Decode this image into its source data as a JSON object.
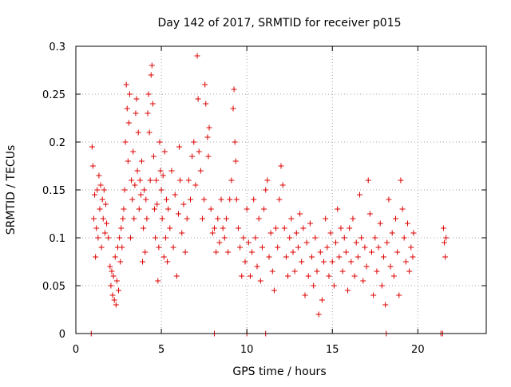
{
  "chart_data": {
    "type": "scatter",
    "title": "Day 142 of 2017, SRMTID for receiver p015",
    "xlabel": "GPS time / hours",
    "ylabel": "SRMTID / TECUs",
    "xlim": [
      0,
      24
    ],
    "ylim": [
      0,
      0.3
    ],
    "x_ticks": [
      0,
      5,
      10,
      15,
      20
    ],
    "y_ticks": [
      0,
      0.05,
      0.1,
      0.15,
      0.2,
      0.25,
      0.3
    ],
    "y_tick_labels": [
      "0",
      "0.05",
      "0.1",
      "0.15",
      "0.2",
      "0.25",
      "0.3"
    ],
    "grid": true,
    "marker": "+",
    "series": [
      {
        "name": "SRMTID",
        "color": "#dd0000",
        "points": [
          [
            0.95,
            0.195
          ],
          [
            1.0,
            0.175
          ],
          [
            1.05,
            0.12
          ],
          [
            1.1,
            0.145
          ],
          [
            1.15,
            0.08
          ],
          [
            1.2,
            0.11
          ],
          [
            1.25,
            0.15
          ],
          [
            1.3,
            0.1
          ],
          [
            1.35,
            0.165
          ],
          [
            1.4,
            0.13
          ],
          [
            1.45,
            0.155
          ],
          [
            1.5,
            0.09
          ],
          [
            1.55,
            0.14
          ],
          [
            1.6,
            0.12
          ],
          [
            1.65,
            0.15
          ],
          [
            1.7,
            0.105
          ],
          [
            1.75,
            0.135
          ],
          [
            1.8,
            0.115
          ],
          [
            1.9,
            0.1
          ],
          [
            2.0,
            0.07
          ],
          [
            2.05,
            0.05
          ],
          [
            2.1,
            0.065
          ],
          [
            2.15,
            0.04
          ],
          [
            2.2,
            0.06
          ],
          [
            2.25,
            0.035
          ],
          [
            2.3,
            0.08
          ],
          [
            2.35,
            0.03
          ],
          [
            2.4,
            0.055
          ],
          [
            2.45,
            0.09
          ],
          [
            2.5,
            0.045
          ],
          [
            2.55,
            0.1
          ],
          [
            2.6,
            0.075
          ],
          [
            2.65,
            0.11
          ],
          [
            2.7,
            0.09
          ],
          [
            2.75,
            0.12
          ],
          [
            2.8,
            0.13
          ],
          [
            2.85,
            0.15
          ],
          [
            2.9,
            0.2
          ],
          [
            2.95,
            0.26
          ],
          [
            3.0,
            0.235
          ],
          [
            3.05,
            0.18
          ],
          [
            3.1,
            0.22
          ],
          [
            3.15,
            0.25
          ],
          [
            3.2,
            0.1
          ],
          [
            3.25,
            0.16
          ],
          [
            3.3,
            0.14
          ],
          [
            3.35,
            0.19
          ],
          [
            3.4,
            0.12
          ],
          [
            3.45,
            0.155
          ],
          [
            3.5,
            0.23
          ],
          [
            3.55,
            0.245
          ],
          [
            3.6,
            0.17
          ],
          [
            3.65,
            0.21
          ],
          [
            3.7,
            0.13
          ],
          [
            3.75,
            0.16
          ],
          [
            3.8,
            0.145
          ],
          [
            3.85,
            0.18
          ],
          [
            3.9,
            0.075
          ],
          [
            3.95,
            0.11
          ],
          [
            4.0,
            0.15
          ],
          [
            4.05,
            0.085
          ],
          [
            4.1,
            0.14
          ],
          [
            4.15,
            0.12
          ],
          [
            4.2,
            0.23
          ],
          [
            4.25,
            0.25
          ],
          [
            4.3,
            0.21
          ],
          [
            4.35,
            0.16
          ],
          [
            4.4,
            0.27
          ],
          [
            4.45,
            0.28
          ],
          [
            4.5,
            0.24
          ],
          [
            4.55,
            0.185
          ],
          [
            4.6,
            0.13
          ],
          [
            4.65,
            0.1
          ],
          [
            4.7,
            0.16
          ],
          [
            4.75,
            0.135
          ],
          [
            4.8,
            0.055
          ],
          [
            4.85,
            0.09
          ],
          [
            4.9,
            0.2
          ],
          [
            4.95,
            0.17
          ],
          [
            5.0,
            0.15
          ],
          [
            5.05,
            0.12
          ],
          [
            5.1,
            0.165
          ],
          [
            5.15,
            0.08
          ],
          [
            5.2,
            0.19
          ],
          [
            5.25,
            0.1
          ],
          [
            5.3,
            0.14
          ],
          [
            5.35,
            0.075
          ],
          [
            5.4,
            0.13
          ],
          [
            5.5,
            0.11
          ],
          [
            5.6,
            0.17
          ],
          [
            5.7,
            0.09
          ],
          [
            5.8,
            0.145
          ],
          [
            5.9,
            0.06
          ],
          [
            6.0,
            0.125
          ],
          [
            6.05,
            0.195
          ],
          [
            6.1,
            0.16
          ],
          [
            6.2,
            0.105
          ],
          [
            6.3,
            0.135
          ],
          [
            6.4,
            0.085
          ],
          [
            6.5,
            0.12
          ],
          [
            6.6,
            0.16
          ],
          [
            6.7,
            0.14
          ],
          [
            6.8,
            0.185
          ],
          [
            6.9,
            0.2
          ],
          [
            7.0,
            0.155
          ],
          [
            7.1,
            0.29
          ],
          [
            7.15,
            0.245
          ],
          [
            7.2,
            0.19
          ],
          [
            7.3,
            0.17
          ],
          [
            7.4,
            0.12
          ],
          [
            7.5,
            0.14
          ],
          [
            7.55,
            0.26
          ],
          [
            7.6,
            0.24
          ],
          [
            7.7,
            0.205
          ],
          [
            7.75,
            0.185
          ],
          [
            7.8,
            0.215
          ],
          [
            7.9,
            0.13
          ],
          [
            8.0,
            0.105
          ],
          [
            8.1,
            0.11
          ],
          [
            8.2,
            0.085
          ],
          [
            8.3,
            0.12
          ],
          [
            8.4,
            0.095
          ],
          [
            8.5,
            0.14
          ],
          [
            8.6,
            0.11
          ],
          [
            8.7,
            0.1
          ],
          [
            8.8,
            0.12
          ],
          [
            8.9,
            0.085
          ],
          [
            9.0,
            0.14
          ],
          [
            9.1,
            0.16
          ],
          [
            9.2,
            0.235
          ],
          [
            9.25,
            0.255
          ],
          [
            9.3,
            0.2
          ],
          [
            9.35,
            0.18
          ],
          [
            9.4,
            0.14
          ],
          [
            9.5,
            0.11
          ],
          [
            9.6,
            0.09
          ],
          [
            9.7,
            0.06
          ],
          [
            9.8,
            0.1
          ],
          [
            9.9,
            0.075
          ],
          [
            10.0,
            0.13
          ],
          [
            10.1,
            0.095
          ],
          [
            10.2,
            0.06
          ],
          [
            10.3,
            0.085
          ],
          [
            10.4,
            0.14
          ],
          [
            10.5,
            0.1
          ],
          [
            10.6,
            0.07
          ],
          [
            10.7,
            0.12
          ],
          [
            10.8,
            0.055
          ],
          [
            10.9,
            0.09
          ],
          [
            11.0,
            0.13
          ],
          [
            11.1,
            0.15
          ],
          [
            11.2,
            0.16
          ],
          [
            11.3,
            0.08
          ],
          [
            11.4,
            0.105
          ],
          [
            11.5,
            0.065
          ],
          [
            11.6,
            0.045
          ],
          [
            11.7,
            0.11
          ],
          [
            11.8,
            0.09
          ],
          [
            11.9,
            0.14
          ],
          [
            12.0,
            0.175
          ],
          [
            12.1,
            0.155
          ],
          [
            12.2,
            0.11
          ],
          [
            12.3,
            0.08
          ],
          [
            12.4,
            0.06
          ],
          [
            12.5,
            0.1
          ],
          [
            12.6,
            0.12
          ],
          [
            12.7,
            0.085
          ],
          [
            12.8,
            0.065
          ],
          [
            12.9,
            0.105
          ],
          [
            13.0,
            0.09
          ],
          [
            13.1,
            0.125
          ],
          [
            13.2,
            0.075
          ],
          [
            13.3,
            0.11
          ],
          [
            13.4,
            0.04
          ],
          [
            13.5,
            0.095
          ],
          [
            13.6,
            0.06
          ],
          [
            13.7,
            0.115
          ],
          [
            13.8,
            0.08
          ],
          [
            13.9,
            0.05
          ],
          [
            14.0,
            0.1
          ],
          [
            14.1,
            0.065
          ],
          [
            14.2,
            0.02
          ],
          [
            14.3,
            0.085
          ],
          [
            14.4,
            0.035
          ],
          [
            14.5,
            0.075
          ],
          [
            14.6,
            0.12
          ],
          [
            14.7,
            0.09
          ],
          [
            14.8,
            0.06
          ],
          [
            14.9,
            0.105
          ],
          [
            15.0,
            0.075
          ],
          [
            15.1,
            0.05
          ],
          [
            15.2,
            0.095
          ],
          [
            15.3,
            0.13
          ],
          [
            15.4,
            0.08
          ],
          [
            15.5,
            0.11
          ],
          [
            15.6,
            0.065
          ],
          [
            15.7,
            0.1
          ],
          [
            15.8,
            0.085
          ],
          [
            15.9,
            0.045
          ],
          [
            16.0,
            0.11
          ],
          [
            16.1,
            0.075
          ],
          [
            16.2,
            0.12
          ],
          [
            16.3,
            0.06
          ],
          [
            16.4,
            0.095
          ],
          [
            16.5,
            0.08
          ],
          [
            16.6,
            0.145
          ],
          [
            16.7,
            0.1
          ],
          [
            16.8,
            0.055
          ],
          [
            16.9,
            0.09
          ],
          [
            17.0,
            0.07
          ],
          [
            17.1,
            0.16
          ],
          [
            17.2,
            0.125
          ],
          [
            17.3,
            0.085
          ],
          [
            17.4,
            0.04
          ],
          [
            17.5,
            0.1
          ],
          [
            17.6,
            0.065
          ],
          [
            17.7,
            0.09
          ],
          [
            17.8,
            0.115
          ],
          [
            17.9,
            0.05
          ],
          [
            18.0,
            0.08
          ],
          [
            18.1,
            0.03
          ],
          [
            18.2,
            0.095
          ],
          [
            18.3,
            0.14
          ],
          [
            18.4,
            0.07
          ],
          [
            18.5,
            0.105
          ],
          [
            18.6,
            0.06
          ],
          [
            18.7,
            0.12
          ],
          [
            18.8,
            0.085
          ],
          [
            18.9,
            0.04
          ],
          [
            19.0,
            0.16
          ],
          [
            19.1,
            0.13
          ],
          [
            19.2,
            0.1
          ],
          [
            19.3,
            0.075
          ],
          [
            19.4,
            0.115
          ],
          [
            19.5,
            0.065
          ],
          [
            19.6,
            0.09
          ],
          [
            19.7,
            0.08
          ],
          [
            19.75,
            0.105
          ],
          [
            21.5,
            0.11
          ],
          [
            21.55,
            0.095
          ],
          [
            21.6,
            0.08
          ],
          [
            21.65,
            0.1
          ],
          [
            0.9,
            0.0
          ],
          [
            8.1,
            0.0
          ],
          [
            10.0,
            0.0
          ],
          [
            11.1,
            0.0
          ],
          [
            18.15,
            0.0
          ],
          [
            21.35,
            0.0
          ],
          [
            21.45,
            0.0
          ]
        ]
      }
    ]
  }
}
